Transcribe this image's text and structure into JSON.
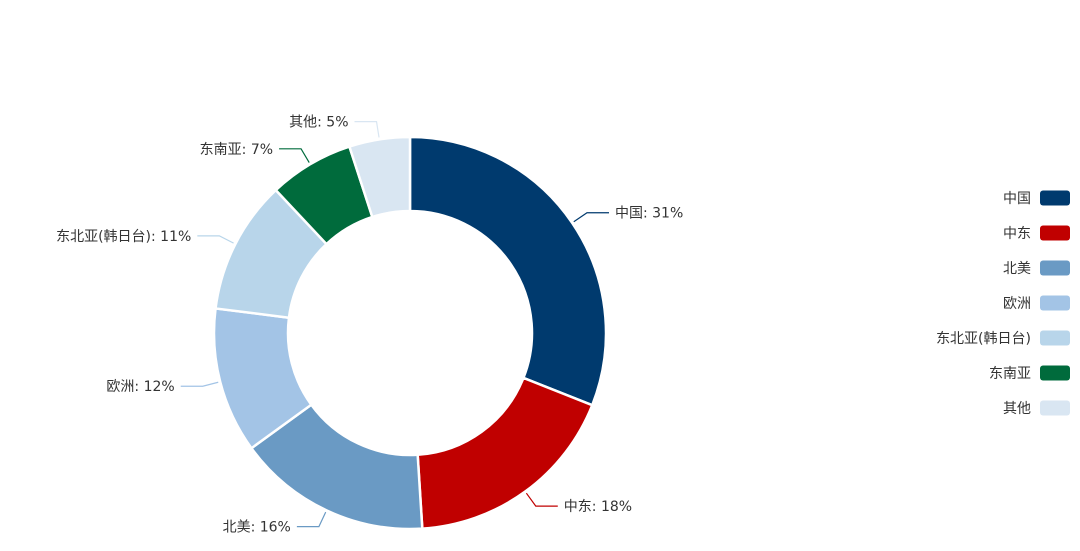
{
  "chart_data": {
    "type": "pie",
    "variant": "donut",
    "slices": [
      {
        "name": "中国",
        "value": 31,
        "label": "中国: 31%",
        "color": "#003a6e"
      },
      {
        "name": "中东",
        "value": 18,
        "label": "中东: 18%",
        "color": "#c00000"
      },
      {
        "name": "北美",
        "value": 16,
        "label": "北美: 16%",
        "color": "#6a9ac4"
      },
      {
        "name": "欧洲",
        "value": 12,
        "label": "欧洲: 12%",
        "color": "#a3c4e6"
      },
      {
        "name": "东北亚(韩日台)",
        "value": 11,
        "label": "东北亚(韩日台): 11%",
        "color": "#b8d5ea"
      },
      {
        "name": "东南亚",
        "value": 7,
        "label": "东南亚: 7%",
        "color": "#006b3c"
      },
      {
        "name": "其他",
        "value": 5,
        "label": "其他: 5%",
        "color": "#d9e6f2"
      }
    ],
    "legend_position": "right",
    "unit": "%"
  }
}
